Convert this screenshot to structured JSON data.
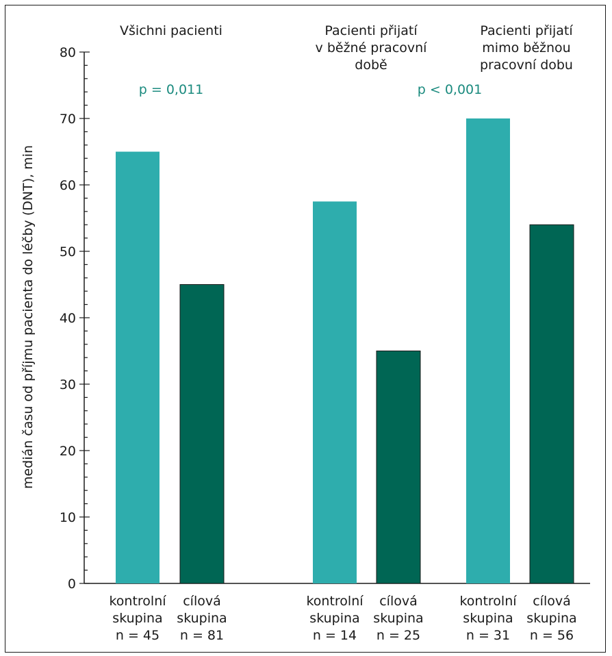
{
  "chart_data": {
    "type": "bar",
    "ylabel": "medián času od příjmu pacienta do léčby (DNT), min",
    "ylim": [
      0,
      80
    ],
    "yticks": [
      0,
      10,
      20,
      30,
      40,
      50,
      60,
      70,
      80
    ],
    "colors": {
      "kontrolni": "#2eadad",
      "cilova": "#006654"
    },
    "groups": [
      {
        "title": [
          "Všichni pacienti"
        ],
        "bars": [
          {
            "label": [
              "kontrolní",
              "skupina",
              "n = 45"
            ],
            "value": 65,
            "kind": "kontrolni"
          },
          {
            "label": [
              "cílová",
              "skupina",
              "n = 81"
            ],
            "value": 45,
            "kind": "cilova"
          }
        ]
      },
      {
        "title": [
          "Pacienti přijatí",
          "v běžné pracovní",
          "době"
        ],
        "bars": [
          {
            "label": [
              "kontrolní",
              "skupina",
              "n = 14"
            ],
            "value": 57.5,
            "kind": "kontrolni"
          },
          {
            "label": [
              "cílová",
              "skupina",
              "n = 25"
            ],
            "value": 35,
            "kind": "cilova"
          }
        ]
      },
      {
        "title": [
          "Pacienti přijatí",
          "mimo běžnou",
          "pracovní dobu"
        ],
        "bars": [
          {
            "label": [
              "kontrolní",
              "skupina",
              "n = 31"
            ],
            "value": 70,
            "kind": "kontrolni"
          },
          {
            "label": [
              "cílová",
              "skupina",
              "n = 56"
            ],
            "value": 54,
            "kind": "cilova"
          }
        ]
      }
    ],
    "annotations": [
      "p = 0,011",
      "p < 0,001"
    ]
  }
}
